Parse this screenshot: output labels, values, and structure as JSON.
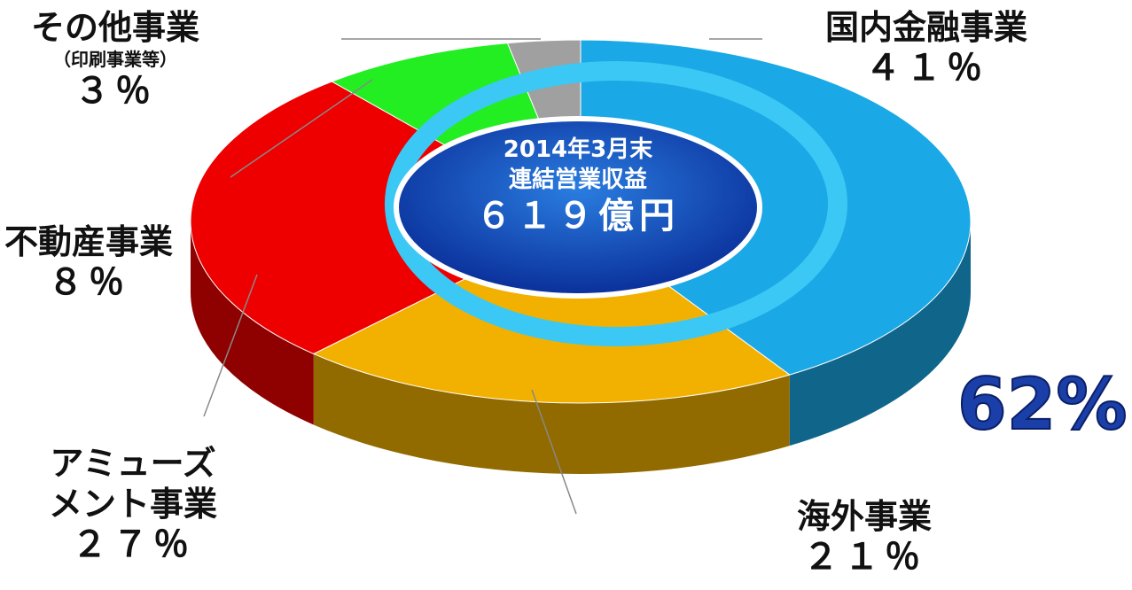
{
  "chart_data": {
    "type": "pie",
    "categories": [
      "国内金融事業",
      "海外事業",
      "アミューズメント事業",
      "不動産事業",
      "その他事業"
    ],
    "values": [
      41,
      21,
      27,
      8,
      3
    ],
    "value_labels": [
      "４１％",
      "２１％",
      "２７％",
      "８％",
      "３％"
    ],
    "colors": [
      "#1aa9e6",
      "#f2b100",
      "#ee0000",
      "#22ee22",
      "#a0a0a0"
    ],
    "category_notes": [
      null,
      null,
      null,
      null,
      "（印刷事業等）"
    ],
    "center_text": [
      "2014年3月末",
      "連結営業収益",
      "６１９億円"
    ],
    "highlight": {
      "value": 62,
      "label": "62%"
    }
  }
}
